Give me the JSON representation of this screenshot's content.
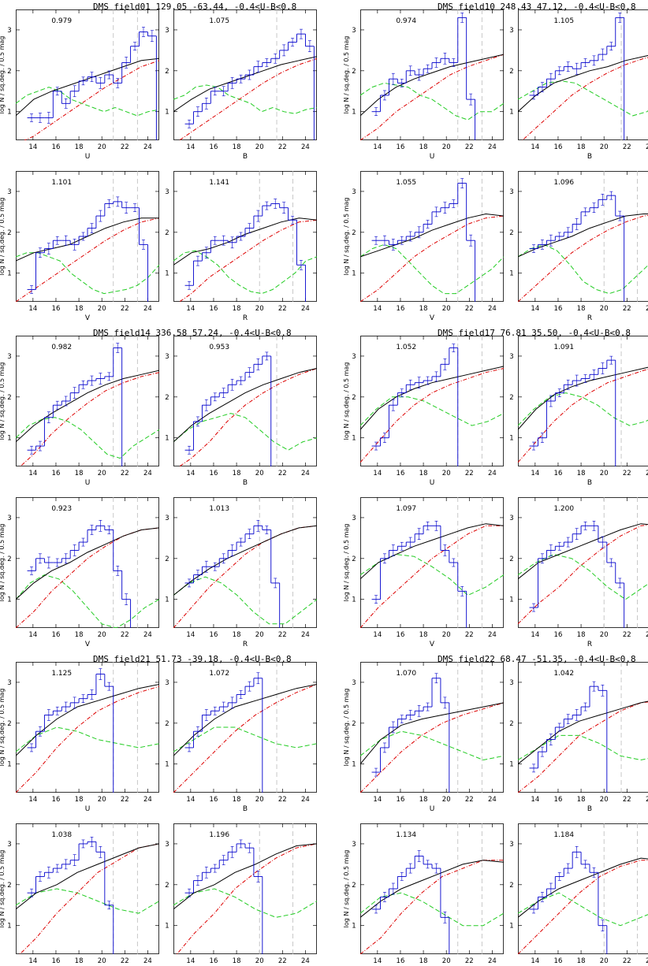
{
  "colors": {
    "data": "#0000cc",
    "total": "#000000",
    "disk": "#dd0000",
    "halo": "#22cc22",
    "vline": "#bbbbbb"
  },
  "common": {
    "ylabel": "log N / sq.deg. / 0.5 mag",
    "xlim": [
      12.5,
      25
    ],
    "ylim": [
      0.3,
      3.5
    ],
    "yticks": [
      1,
      2,
      3
    ],
    "xticks": [
      14,
      16,
      18,
      20,
      22,
      24
    ]
  },
  "groups": [
    {
      "title": "DMS field01 129.05 -63.44, -0.4<U-B<0.8"
    },
    {
      "title": "DMS field10 248.43 47.12, -0.4<U-B<0.8"
    },
    {
      "title": "DMS field14 336.58 57.24, -0.4<U-B<0.8"
    },
    {
      "title": "DMS field17 76.81 35.50, -0.4<U-B<0.8"
    },
    {
      "title": "DMS field21 51.73 -39.18, -0.4<U-B<0.8"
    },
    {
      "title": "DMS field22 68.47 -51.35, -0.4<U-B<0.8"
    }
  ],
  "chart_data": [
    {
      "type": "line",
      "group": 0,
      "band": "U",
      "ratio": "0.979",
      "vlines": [
        21,
        23.1
      ],
      "gy": [
        1.2,
        1.4,
        1.5,
        1.6,
        1.5,
        1.3,
        1.2,
        1.1,
        1.0,
        1.1,
        1.0,
        0.9,
        1.0,
        1.05
      ],
      "ry": [
        0.2,
        0.4,
        0.7,
        1.0,
        1.3,
        1.6,
        1.85,
        2.1,
        2.25
      ],
      "ty": [
        0.9,
        1.3,
        1.5,
        1.65,
        1.8,
        1.95,
        2.1,
        2.25,
        2.3
      ],
      "dy": [
        0.85,
        0.85,
        0.85,
        1.5,
        1.2,
        1.5,
        1.75,
        1.85,
        1.7,
        1.9,
        1.7,
        2.2,
        2.6,
        2.95,
        2.85
      ]
    },
    {
      "type": "line",
      "group": 0,
      "band": "B",
      "ratio": "1.075",
      "vlines": [
        21.5
      ],
      "gy": [
        1.3,
        1.4,
        1.6,
        1.65,
        1.6,
        1.4,
        1.3,
        1.2,
        1.0,
        1.1,
        1.0,
        0.95,
        1.05,
        1.1
      ],
      "ry": [
        0.2,
        0.5,
        0.8,
        1.1,
        1.4,
        1.7,
        1.95,
        2.15,
        2.3
      ],
      "ty": [
        1.0,
        1.3,
        1.55,
        1.7,
        1.85,
        2.0,
        2.15,
        2.25,
        2.35
      ],
      "dy": [
        0.7,
        1.0,
        1.2,
        1.5,
        1.5,
        1.7,
        1.8,
        1.9,
        2.1,
        2.2,
        2.3,
        2.5,
        2.7,
        2.9,
        2.6
      ]
    },
    {
      "type": "line",
      "group": 0,
      "band": "V",
      "ratio": "1.101",
      "vlines": [
        21,
        23.1
      ],
      "gy": [
        1.4,
        1.5,
        1.5,
        1.4,
        1.3,
        1.0,
        0.8,
        0.6,
        0.5,
        0.55,
        0.6,
        0.7,
        0.9,
        1.2
      ],
      "ry": [
        0.3,
        0.6,
        0.9,
        1.2,
        1.5,
        1.8,
        2.05,
        2.25,
        2.35
      ],
      "ty": [
        1.3,
        1.5,
        1.6,
        1.7,
        1.9,
        2.1,
        2.25,
        2.35,
        2.35
      ],
      "dy": [
        0.6,
        1.5,
        1.6,
        1.8,
        1.8,
        1.7,
        1.9,
        2.1,
        2.4,
        2.7,
        2.75,
        2.6,
        2.6,
        1.7
      ]
    },
    {
      "type": "line",
      "group": 0,
      "band": "R",
      "ratio": "1.141",
      "vlines": [
        20,
        22.9
      ],
      "gy": [
        1.3,
        1.5,
        1.55,
        1.4,
        1.2,
        0.9,
        0.7,
        0.55,
        0.5,
        0.6,
        0.8,
        1.0,
        1.3,
        1.4
      ],
      "ry": [
        0.2,
        0.5,
        0.9,
        1.2,
        1.5,
        1.8,
        2.05,
        2.25,
        2.3
      ],
      "ty": [
        1.2,
        1.5,
        1.6,
        1.75,
        1.95,
        2.1,
        2.25,
        2.35,
        2.3
      ],
      "dy": [
        0.7,
        1.3,
        1.5,
        1.8,
        1.8,
        1.75,
        1.9,
        2.1,
        2.4,
        2.65,
        2.7,
        2.6,
        2.3,
        1.2
      ]
    },
    {
      "type": "line",
      "group": 1,
      "band": "U",
      "ratio": "0.974",
      "vlines": [
        21,
        23.1
      ],
      "gy": [
        1.4,
        1.6,
        1.7,
        1.65,
        1.6,
        1.4,
        1.3,
        1.1,
        0.9,
        0.8,
        1.0,
        1.0,
        1.2
      ],
      "ry": [
        0.3,
        0.6,
        1.0,
        1.3,
        1.6,
        1.9,
        2.1,
        2.25,
        2.4
      ],
      "ty": [
        0.9,
        1.3,
        1.6,
        1.8,
        1.95,
        2.1,
        2.2,
        2.3,
        2.4
      ],
      "dy": [
        1.0,
        1.4,
        1.8,
        1.7,
        2.0,
        1.9,
        2.05,
        2.2,
        2.3,
        2.2,
        3.3,
        1.3
      ]
    },
    {
      "type": "line",
      "group": 1,
      "band": "B",
      "ratio": "1.105",
      "vlines": [
        21.5
      ],
      "gy": [
        1.3,
        1.5,
        1.7,
        1.75,
        1.7,
        1.5,
        1.3,
        1.1,
        0.9,
        1.0,
        1.3
      ],
      "ry": [
        0.2,
        0.6,
        1.0,
        1.4,
        1.7,
        1.95,
        2.15,
        2.3,
        2.4
      ],
      "ty": [
        1.0,
        1.4,
        1.7,
        1.85,
        2.0,
        2.1,
        2.25,
        2.35,
        2.45
      ],
      "dy": [
        1.4,
        1.6,
        1.8,
        2.0,
        2.1,
        2.05,
        2.2,
        2.25,
        2.4,
        2.6,
        3.3
      ]
    },
    {
      "type": "line",
      "group": 1,
      "band": "V",
      "ratio": "1.055",
      "vlines": [
        21,
        23.1
      ],
      "gy": [
        1.4,
        1.6,
        1.7,
        1.6,
        1.3,
        1.0,
        0.7,
        0.5,
        0.5,
        0.7,
        0.9,
        1.1,
        1.4
      ],
      "ry": [
        0.3,
        0.6,
        1.0,
        1.4,
        1.7,
        1.95,
        2.2,
        2.35,
        2.4
      ],
      "ty": [
        1.4,
        1.55,
        1.7,
        1.85,
        2.05,
        2.2,
        2.35,
        2.45,
        2.4
      ],
      "dy": [
        1.8,
        1.8,
        1.7,
        1.8,
        1.9,
        2.0,
        2.2,
        2.5,
        2.6,
        2.7,
        3.2,
        1.8
      ]
    },
    {
      "type": "line",
      "group": 1,
      "band": "R",
      "ratio": "1.096",
      "vlines": [
        20,
        22.9
      ],
      "gy": [
        1.4,
        1.6,
        1.7,
        1.55,
        1.2,
        0.8,
        0.6,
        0.5,
        0.6,
        0.9,
        1.2,
        1.5
      ],
      "ry": [
        0.3,
        0.7,
        1.1,
        1.5,
        1.8,
        2.05,
        2.25,
        2.4,
        2.45
      ],
      "ty": [
        1.4,
        1.6,
        1.75,
        1.9,
        2.1,
        2.25,
        2.4,
        2.45,
        2.45
      ],
      "dy": [
        1.6,
        1.7,
        1.8,
        1.9,
        2.0,
        2.2,
        2.5,
        2.6,
        2.8,
        2.9,
        2.4
      ]
    },
    {
      "type": "line",
      "group": 2,
      "band": "U",
      "ratio": "0.982",
      "vlines": [
        21,
        23.1
      ],
      "gy": [
        1.0,
        1.3,
        1.45,
        1.5,
        1.4,
        1.2,
        0.9,
        0.6,
        0.5,
        0.8,
        1.0,
        1.2
      ],
      "ry": [
        0.2,
        0.6,
        1.1,
        1.5,
        1.85,
        2.15,
        2.35,
        2.5,
        2.6
      ],
      "ty": [
        0.9,
        1.3,
        1.6,
        1.85,
        2.1,
        2.3,
        2.45,
        2.55,
        2.65
      ],
      "dy": [
        0.7,
        0.8,
        1.5,
        1.8,
        1.9,
        2.1,
        2.3,
        2.4,
        2.45,
        2.5,
        3.2
      ]
    },
    {
      "type": "line",
      "group": 2,
      "band": "B",
      "ratio": "0.953",
      "vlines": [
        21.5
      ],
      "gy": [
        0.9,
        1.2,
        1.4,
        1.5,
        1.6,
        1.5,
        1.2,
        0.9,
        0.7,
        0.9,
        1.0
      ],
      "ry": [
        0.2,
        0.5,
        0.9,
        1.4,
        1.8,
        2.1,
        2.35,
        2.55,
        2.7
      ],
      "ty": [
        0.9,
        1.3,
        1.6,
        1.85,
        2.1,
        2.3,
        2.45,
        2.6,
        2.7
      ],
      "dy": [
        0.7,
        1.4,
        1.8,
        2.0,
        2.1,
        2.3,
        2.4,
        2.6,
        2.8,
        3.0
      ]
    },
    {
      "type": "line",
      "group": 2,
      "band": "V",
      "ratio": "0.923",
      "vlines": [
        21,
        23.1
      ],
      "gy": [
        1.0,
        1.4,
        1.6,
        1.5,
        1.2,
        0.8,
        0.4,
        0.3,
        0.5,
        0.8,
        1.0
      ],
      "ry": [
        0.3,
        0.7,
        1.2,
        1.6,
        2.0,
        2.3,
        2.55,
        2.7,
        2.75
      ],
      "ty": [
        1.0,
        1.4,
        1.7,
        1.9,
        2.15,
        2.35,
        2.55,
        2.7,
        2.75
      ],
      "dy": [
        1.7,
        2.0,
        1.9,
        1.9,
        2.0,
        2.2,
        2.4,
        2.7,
        2.8,
        2.7,
        1.7,
        1.0
      ]
    },
    {
      "type": "line",
      "group": 2,
      "band": "R",
      "ratio": "1.013",
      "vlines": [
        20,
        22.9
      ],
      "gy": [
        1.1,
        1.4,
        1.55,
        1.4,
        1.1,
        0.7,
        0.4,
        0.4,
        0.7,
        1.0
      ],
      "ry": [
        0.3,
        0.8,
        1.3,
        1.7,
        2.1,
        2.4,
        2.6,
        2.75,
        2.8
      ],
      "ty": [
        1.1,
        1.45,
        1.75,
        2.0,
        2.2,
        2.4,
        2.6,
        2.75,
        2.8
      ],
      "dy": [
        1.4,
        1.6,
        1.8,
        1.8,
        2.0,
        2.2,
        2.4,
        2.6,
        2.8,
        2.7,
        1.4
      ]
    },
    {
      "type": "line",
      "group": 3,
      "band": "U",
      "ratio": "1.052",
      "vlines": [
        21,
        23.1
      ],
      "gy": [
        1.3,
        1.7,
        2.0,
        2.0,
        1.9,
        1.7,
        1.5,
        1.3,
        1.4,
        1.6
      ],
      "ry": [
        0.4,
        0.9,
        1.4,
        1.8,
        2.1,
        2.3,
        2.45,
        2.6,
        2.7
      ],
      "ty": [
        1.2,
        1.7,
        2.0,
        2.2,
        2.35,
        2.45,
        2.55,
        2.65,
        2.75
      ],
      "dy": [
        0.8,
        1.0,
        1.8,
        2.1,
        2.3,
        2.35,
        2.4,
        2.5,
        2.8,
        3.2
      ]
    },
    {
      "type": "line",
      "group": 3,
      "band": "B",
      "ratio": "1.091",
      "vlines": [
        21.5
      ],
      "gy": [
        1.3,
        1.7,
        2.0,
        2.1,
        2.0,
        1.8,
        1.5,
        1.3,
        1.4,
        1.6
      ],
      "ry": [
        0.4,
        0.9,
        1.4,
        1.8,
        2.1,
        2.35,
        2.5,
        2.65,
        2.75
      ],
      "ty": [
        1.2,
        1.7,
        2.05,
        2.25,
        2.4,
        2.5,
        2.6,
        2.7,
        2.8
      ],
      "dy": [
        0.8,
        1.0,
        1.9,
        2.1,
        2.3,
        2.4,
        2.45,
        2.55,
        2.7,
        2.9
      ]
    },
    {
      "type": "line",
      "group": 3,
      "band": "V",
      "ratio": "1.097",
      "vlines": [
        21,
        23.1
      ],
      "gy": [
        1.6,
        1.9,
        2.1,
        2.05,
        1.8,
        1.5,
        1.1,
        1.3,
        1.6
      ],
      "ry": [
        0.3,
        0.8,
        1.2,
        1.6,
        2.0,
        2.3,
        2.6,
        2.8,
        2.8
      ],
      "ty": [
        1.5,
        1.9,
        2.1,
        2.3,
        2.45,
        2.6,
        2.75,
        2.85,
        2.8
      ],
      "dy": [
        1.0,
        2.0,
        2.2,
        2.3,
        2.4,
        2.6,
        2.8,
        2.8,
        2.2,
        1.9,
        1.2
      ]
    },
    {
      "type": "line",
      "group": 3,
      "band": "R",
      "ratio": "1.200",
      "vlines": [
        20,
        22.9
      ],
      "gy": [
        1.6,
        1.9,
        2.1,
        2.0,
        1.7,
        1.3,
        1.0,
        1.3,
        1.6
      ],
      "ry": [
        0.4,
        0.9,
        1.3,
        1.8,
        2.2,
        2.55,
        2.8,
        2.85
      ],
      "ty": [
        1.5,
        1.9,
        2.1,
        2.3,
        2.5,
        2.7,
        2.85,
        2.8
      ],
      "dy": [
        0.8,
        2.0,
        2.2,
        2.3,
        2.4,
        2.6,
        2.8,
        2.8,
        2.4,
        1.9,
        1.4
      ]
    },
    {
      "type": "line",
      "group": 4,
      "band": "U",
      "ratio": "1.125",
      "vlines": [
        21,
        23.1
      ],
      "gy": [
        1.3,
        1.7,
        1.9,
        1.8,
        1.6,
        1.5,
        1.4,
        1.5
      ],
      "ry": [
        0.3,
        0.8,
        1.4,
        1.9,
        2.3,
        2.55,
        2.75,
        2.9
      ],
      "ty": [
        1.2,
        1.7,
        2.1,
        2.4,
        2.55,
        2.7,
        2.85,
        2.95
      ],
      "dy": [
        1.4,
        1.8,
        2.2,
        2.3,
        2.4,
        2.5,
        2.6,
        2.7,
        3.2,
        2.9
      ]
    },
    {
      "type": "line",
      "group": 4,
      "band": "B",
      "ratio": "1.072",
      "vlines": [
        21.5
      ],
      "gy": [
        1.3,
        1.6,
        1.9,
        1.9,
        1.7,
        1.5,
        1.4,
        1.5
      ],
      "ry": [
        0.3,
        0.8,
        1.3,
        1.8,
        2.2,
        2.5,
        2.75,
        2.95
      ],
      "ty": [
        1.2,
        1.7,
        2.1,
        2.4,
        2.55,
        2.7,
        2.85,
        2.95
      ],
      "dy": [
        1.4,
        1.8,
        2.2,
        2.3,
        2.4,
        2.5,
        2.7,
        2.9,
        3.1
      ]
    },
    {
      "type": "line",
      "group": 4,
      "band": "V",
      "ratio": "1.038",
      "vlines": [
        21,
        23.1
      ],
      "gy": [
        1.5,
        1.8,
        1.9,
        1.8,
        1.6,
        1.4,
        1.3,
        1.6
      ],
      "ry": [
        0.2,
        0.7,
        1.3,
        1.8,
        2.3,
        2.6,
        2.9,
        3.0
      ],
      "ty": [
        1.4,
        1.8,
        2.0,
        2.3,
        2.5,
        2.7,
        2.9,
        3.0
      ],
      "dy": [
        1.8,
        2.2,
        2.3,
        2.4,
        2.5,
        2.6,
        3.0,
        3.05,
        2.8,
        1.5
      ]
    },
    {
      "type": "line",
      "group": 4,
      "band": "R",
      "ratio": "1.196",
      "vlines": [
        20,
        22.9
      ],
      "gy": [
        1.5,
        1.8,
        1.9,
        1.7,
        1.4,
        1.2,
        1.3,
        1.6
      ],
      "ry": [
        0.2,
        0.8,
        1.3,
        1.9,
        2.3,
        2.65,
        2.9,
        3.0
      ],
      "ty": [
        1.4,
        1.8,
        2.0,
        2.3,
        2.5,
        2.75,
        2.95,
        3.0
      ],
      "dy": [
        1.8,
        2.1,
        2.3,
        2.4,
        2.6,
        2.8,
        3.0,
        2.9,
        2.2
      ]
    },
    {
      "type": "line",
      "group": 5,
      "band": "U",
      "ratio": "1.070",
      "vlines": [
        21,
        23.1
      ],
      "gy": [
        1.2,
        1.6,
        1.8,
        1.7,
        1.5,
        1.3,
        1.1,
        1.2
      ],
      "ry": [
        0.3,
        0.8,
        1.3,
        1.7,
        2.0,
        2.2,
        2.35,
        2.5
      ],
      "ty": [
        1.0,
        1.6,
        1.95,
        2.1,
        2.2,
        2.3,
        2.4,
        2.5
      ],
      "dy": [
        0.8,
        1.4,
        1.9,
        2.1,
        2.2,
        2.3,
        2.4,
        3.1,
        2.5
      ]
    },
    {
      "type": "line",
      "group": 5,
      "band": "B",
      "ratio": "1.042",
      "vlines": [
        21.5
      ],
      "gy": [
        1.1,
        1.4,
        1.7,
        1.7,
        1.5,
        1.2,
        1.1,
        1.2
      ],
      "ry": [
        0.3,
        0.7,
        1.2,
        1.7,
        2.0,
        2.3,
        2.5,
        2.55
      ],
      "ty": [
        1.0,
        1.4,
        1.8,
        2.05,
        2.2,
        2.35,
        2.5,
        2.6
      ],
      "dy": [
        0.9,
        1.3,
        1.6,
        1.9,
        2.1,
        2.2,
        2.4,
        2.9,
        2.8
      ]
    },
    {
      "type": "line",
      "group": 5,
      "band": "V",
      "ratio": "1.134",
      "vlines": [
        21,
        23.1
      ],
      "gy": [
        1.3,
        1.7,
        1.8,
        1.6,
        1.3,
        1.0,
        1.0,
        1.3
      ],
      "ry": [
        0.3,
        0.7,
        1.3,
        1.8,
        2.2,
        2.4,
        2.6,
        2.6
      ],
      "ty": [
        1.2,
        1.6,
        1.9,
        2.1,
        2.3,
        2.5,
        2.6,
        2.55
      ],
      "dy": [
        1.4,
        1.7,
        1.9,
        2.2,
        2.4,
        2.7,
        2.5,
        2.4,
        1.2
      ]
    },
    {
      "type": "line",
      "group": 5,
      "band": "R",
      "ratio": "1.184",
      "vlines": [
        20,
        22.9
      ],
      "gy": [
        1.3,
        1.6,
        1.8,
        1.5,
        1.2,
        1.0,
        1.2,
        1.4
      ],
      "ry": [
        0.3,
        0.8,
        1.3,
        1.8,
        2.2,
        2.45,
        2.6,
        2.6
      ],
      "ty": [
        1.2,
        1.6,
        1.9,
        2.1,
        2.3,
        2.5,
        2.65,
        2.6
      ],
      "dy": [
        1.4,
        1.7,
        1.9,
        2.2,
        2.4,
        2.8,
        2.5,
        2.3,
        1.0
      ]
    }
  ]
}
